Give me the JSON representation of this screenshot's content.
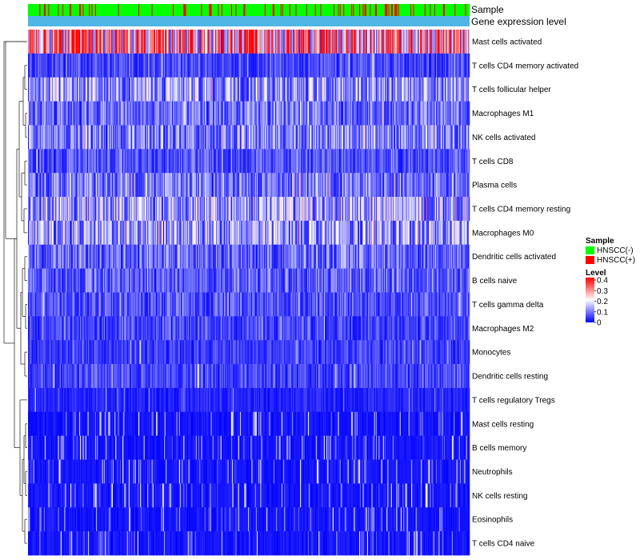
{
  "chart_data": {
    "type": "heatmap",
    "title": "",
    "annotation_rows": [
      "Sample",
      "Gene expression level"
    ],
    "rows": [
      "Mast cells activated",
      "T cells CD4 memory activated",
      "T cells follicular helper",
      "Macrophages M1",
      "NK cells activated",
      "T cells CD8",
      "Plasma cells",
      "T cells CD4 memory resting",
      "Macrophages M0",
      "Dendritic cells activated",
      "B cells naive",
      "T cells gamma delta",
      "Macrophages M2",
      "Monocytes",
      "Dendritic cells resting",
      "T cells regulatory  Tregs",
      "Mast cells resting",
      "B cells memory",
      "Neutrophils",
      "NK cells resting",
      "Eosinophils",
      "T cells CD4 naive"
    ],
    "row_mean_levels": [
      0.3,
      0.06,
      0.13,
      0.09,
      0.11,
      0.07,
      0.1,
      0.14,
      0.13,
      0.09,
      0.08,
      0.07,
      0.06,
      0.05,
      0.06,
      0.03,
      0.01,
      0.02,
      0.02,
      0.01,
      0.01,
      0.01
    ],
    "sample_count": 500,
    "sample_positive_fraction": 0.15,
    "legend": {
      "sample_title": "Sample",
      "sample_entries": [
        {
          "label": "HNSCC(-)",
          "color": "#00ff00"
        },
        {
          "label": "HNSCC(+)",
          "color": "#ff0000"
        }
      ],
      "level_title": "Level",
      "level_ticks": [
        "0.4",
        "0.3",
        "0.2",
        "0.1",
        "0"
      ],
      "level_range": [
        0,
        0.4
      ]
    },
    "colors": {
      "low": "#0000ff",
      "mid": "#ffffff",
      "high": "#ff0000",
      "mid_value": 0.2,
      "gene_expression_bar": "#4fb6e6"
    }
  }
}
